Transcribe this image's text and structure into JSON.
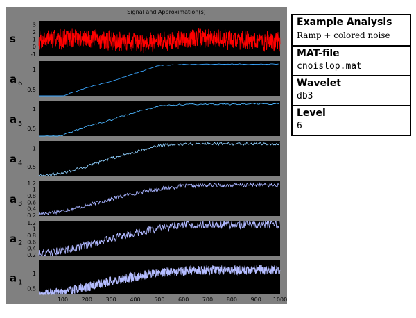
{
  "figure": {
    "title": "Signal and Approximation(s)",
    "colors": {
      "panel_background": "#808080",
      "axes_background": "#000000",
      "tick_label": "#000000",
      "signal": "#ff0000",
      "a6": "#3aa6ff",
      "a5": "#4cb6ff",
      "a4": "#8fd0ff",
      "a3": "#a7b3ff",
      "a2": "#b0b8ff",
      "a1": "#b4bcff"
    }
  },
  "chart_data": [
    {
      "type": "line",
      "row_label": "s",
      "subscript": "",
      "x": [
        1,
        1000
      ],
      "ylim": [
        -1.2,
        3.5
      ],
      "yticks": [
        "3",
        "2",
        "1",
        "0",
        "-1"
      ],
      "series": [
        {
          "color": "#ff0000",
          "stats": {
            "mean_range": [
              0.6,
              1.2
            ],
            "noise": "high"
          }
        }
      ]
    },
    {
      "type": "line",
      "row_label": "a",
      "subscript": "6",
      "ylim": [
        0.35,
        1.2
      ],
      "yticks": [
        "1",
        "0.5"
      ],
      "series": [
        {
          "color": "#3aa6ff",
          "points": [
            [
              1,
              0.3
            ],
            [
              100,
              0.35
            ],
            [
              200,
              0.55
            ],
            [
              300,
              0.7
            ],
            [
              400,
              0.9
            ],
            [
              500,
              1.1
            ],
            [
              600,
              1.12
            ],
            [
              700,
              1.12
            ],
            [
              800,
              1.13
            ],
            [
              900,
              1.12
            ],
            [
              1000,
              1.13
            ]
          ]
        }
      ]
    },
    {
      "type": "line",
      "row_label": "a",
      "subscript": "5",
      "ylim": [
        0.3,
        1.2
      ],
      "yticks": [
        "1",
        "0.5"
      ],
      "series": [
        {
          "color": "#4cb6ff",
          "points": [
            [
              1,
              0.28
            ],
            [
              100,
              0.32
            ],
            [
              200,
              0.55
            ],
            [
              300,
              0.72
            ],
            [
              400,
              0.92
            ],
            [
              500,
              1.08
            ],
            [
              600,
              1.12
            ],
            [
              700,
              1.13
            ],
            [
              800,
              1.12
            ],
            [
              900,
              1.14
            ],
            [
              1000,
              1.13
            ]
          ]
        }
      ]
    },
    {
      "type": "line",
      "row_label": "a",
      "subscript": "4",
      "ylim": [
        0.25,
        1.2
      ],
      "yticks": [
        "1",
        "0.5"
      ],
      "series": [
        {
          "color": "#8fd0ff",
          "points": [
            [
              1,
              0.25
            ],
            [
              100,
              0.32
            ],
            [
              200,
              0.5
            ],
            [
              300,
              0.72
            ],
            [
              400,
              0.9
            ],
            [
              500,
              1.08
            ],
            [
              600,
              1.12
            ],
            [
              700,
              1.13
            ],
            [
              800,
              1.12
            ],
            [
              900,
              1.13
            ],
            [
              1000,
              1.12
            ]
          ]
        }
      ]
    },
    {
      "type": "line",
      "row_label": "a",
      "subscript": "3",
      "ylim": [
        0.18,
        1.25
      ],
      "yticks": [
        "1.2",
        "1",
        "0.8",
        "0.6",
        "0.4",
        "0.2"
      ],
      "series": [
        {
          "color": "#a7b3ff",
          "points": [
            [
              1,
              0.25
            ],
            [
              100,
              0.33
            ],
            [
              200,
              0.5
            ],
            [
              300,
              0.7
            ],
            [
              400,
              0.88
            ],
            [
              500,
              1.02
            ],
            [
              600,
              1.1
            ],
            [
              700,
              1.13
            ],
            [
              800,
              1.12
            ],
            [
              900,
              1.14
            ],
            [
              1000,
              1.12
            ]
          ]
        }
      ]
    },
    {
      "type": "line",
      "row_label": "a",
      "subscript": "2",
      "ylim": [
        0.18,
        1.25
      ],
      "yticks": [
        "1.2",
        "1",
        "0.8",
        "0.6",
        "0.4",
        "0.2"
      ],
      "series": [
        {
          "color": "#b0b8ff",
          "points": [
            [
              1,
              0.25
            ],
            [
              100,
              0.33
            ],
            [
              200,
              0.5
            ],
            [
              300,
              0.7
            ],
            [
              400,
              0.88
            ],
            [
              500,
              1.02
            ],
            [
              600,
              1.1
            ],
            [
              700,
              1.13
            ],
            [
              800,
              1.12
            ],
            [
              900,
              1.14
            ],
            [
              1000,
              1.12
            ]
          ]
        }
      ]
    },
    {
      "type": "line",
      "row_label": "a",
      "subscript": "1",
      "ylim": [
        0.3,
        1.45
      ],
      "yticks": [
        "1",
        "0.5"
      ],
      "xticks": [
        "100",
        "200",
        "300",
        "400",
        "500",
        "600",
        "700",
        "800",
        "900",
        "1000"
      ],
      "series": [
        {
          "color": "#b4bcff",
          "points": [
            [
              1,
              0.3
            ],
            [
              100,
              0.4
            ],
            [
              200,
              0.55
            ],
            [
              300,
              0.75
            ],
            [
              400,
              0.9
            ],
            [
              500,
              1.05
            ],
            [
              600,
              1.1
            ],
            [
              700,
              1.12
            ],
            [
              800,
              1.12
            ],
            [
              900,
              1.13
            ],
            [
              1000,
              1.12
            ]
          ]
        }
      ]
    }
  ],
  "info_panel": {
    "example_title": "Example Analysis",
    "example_value": "Ramp + colored noise",
    "matfile_title": "MAT-file",
    "matfile_value": "cnoislop.mat",
    "wavelet_title": "Wavelet",
    "wavelet_value": "db3",
    "level_title": "Level",
    "level_value": "6"
  }
}
